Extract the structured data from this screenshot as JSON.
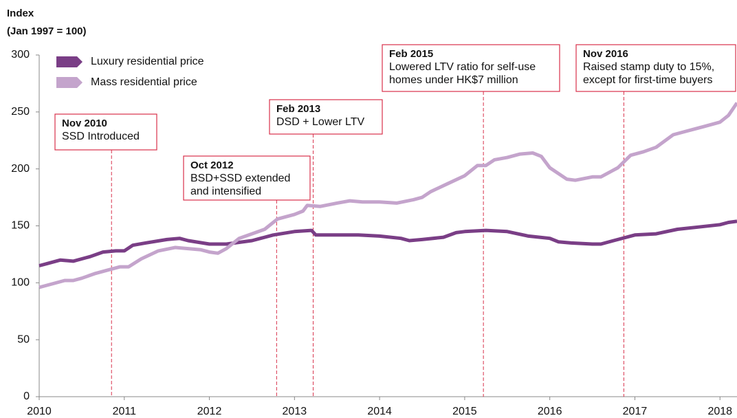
{
  "chart_data": {
    "type": "line",
    "y_label": [
      "Index",
      "(Jan 1997 = 100)"
    ],
    "xlim": [
      2010,
      2018.2
    ],
    "xticks": [
      2010,
      2011,
      2012,
      2013,
      2014,
      2015,
      2016,
      2017,
      2018
    ],
    "ylim": [
      0,
      300
    ],
    "yticks": [
      0,
      50,
      100,
      150,
      200,
      250,
      300
    ],
    "grid": false,
    "legend": "top-left",
    "series": [
      {
        "name": "Luxury residential price",
        "color": "#7a3e86",
        "x": [
          2010.0,
          2010.1,
          2010.25,
          2010.4,
          2010.6,
          2010.75,
          2010.9,
          2011.0,
          2011.1,
          2011.25,
          2011.5,
          2011.65,
          2011.75,
          2012.0,
          2012.2,
          2012.5,
          2012.75,
          2013.0,
          2013.2,
          2013.25,
          2013.5,
          2013.75,
          2014.0,
          2014.25,
          2014.35,
          2014.5,
          2014.75,
          2014.9,
          2015.0,
          2015.25,
          2015.5,
          2015.75,
          2016.0,
          2016.1,
          2016.25,
          2016.5,
          2016.6,
          2016.75,
          2017.0,
          2017.25,
          2017.5,
          2017.75,
          2018.0,
          2018.1,
          2018.2
        ],
        "values": [
          115,
          117,
          120,
          119,
          123,
          127,
          128,
          128,
          133,
          135,
          138,
          139,
          137,
          134,
          134,
          137,
          142,
          145,
          146,
          142,
          142,
          142,
          141,
          139,
          137,
          138,
          140,
          144,
          145,
          146,
          145,
          141,
          139,
          136,
          135,
          134,
          134,
          137,
          142,
          143,
          147,
          149,
          151,
          153,
          154
        ]
      },
      {
        "name": "Mass residential price",
        "color": "#c4a4cc",
        "x": [
          2010.0,
          2010.15,
          2010.3,
          2010.4,
          2010.5,
          2010.65,
          2010.8,
          2010.95,
          2011.05,
          2011.2,
          2011.4,
          2011.6,
          2011.75,
          2011.9,
          2012.0,
          2012.1,
          2012.2,
          2012.35,
          2012.5,
          2012.65,
          2012.8,
          2013.0,
          2013.1,
          2013.15,
          2013.3,
          2013.5,
          2013.65,
          2013.8,
          2014.0,
          2014.2,
          2014.4,
          2014.5,
          2014.6,
          2014.8,
          2015.0,
          2015.15,
          2015.25,
          2015.35,
          2015.5,
          2015.65,
          2015.8,
          2015.9,
          2016.0,
          2016.2,
          2016.3,
          2016.5,
          2016.6,
          2016.8,
          2016.95,
          2017.1,
          2017.25,
          2017.45,
          2017.6,
          2017.8,
          2018.0,
          2018.1,
          2018.2
        ],
        "values": [
          96,
          99,
          102,
          102,
          104,
          108,
          111,
          114,
          114,
          121,
          128,
          131,
          130,
          129,
          127,
          126,
          130,
          139,
          143,
          147,
          156,
          160,
          163,
          168,
          167,
          170,
          172,
          171,
          171,
          170,
          173,
          175,
          180,
          187,
          194,
          203,
          203,
          208,
          210,
          213,
          214,
          211,
          201,
          191,
          190,
          193,
          193,
          201,
          212,
          215,
          219,
          230,
          233,
          237,
          241,
          247,
          258
        ]
      }
    ],
    "annotations": [
      {
        "x": 2010.85,
        "title": "Nov 2010",
        "text": [
          "SSD Introduced"
        ]
      },
      {
        "x": 2012.79,
        "title": "Oct 2012",
        "text": [
          "BSD+SSD extended",
          "and intensified"
        ]
      },
      {
        "x": 2013.22,
        "title": "Feb 2013",
        "text": [
          "DSD + Lower LTV"
        ]
      },
      {
        "x": 2015.22,
        "title": "Feb 2015",
        "text": [
          "Lowered LTV ratio for self-use",
          "homes under HK$7 million"
        ]
      },
      {
        "x": 2016.87,
        "title": "Nov 2016",
        "text": [
          "Raised stamp duty to 15%,",
          "except for first-time buyers"
        ]
      }
    ]
  }
}
